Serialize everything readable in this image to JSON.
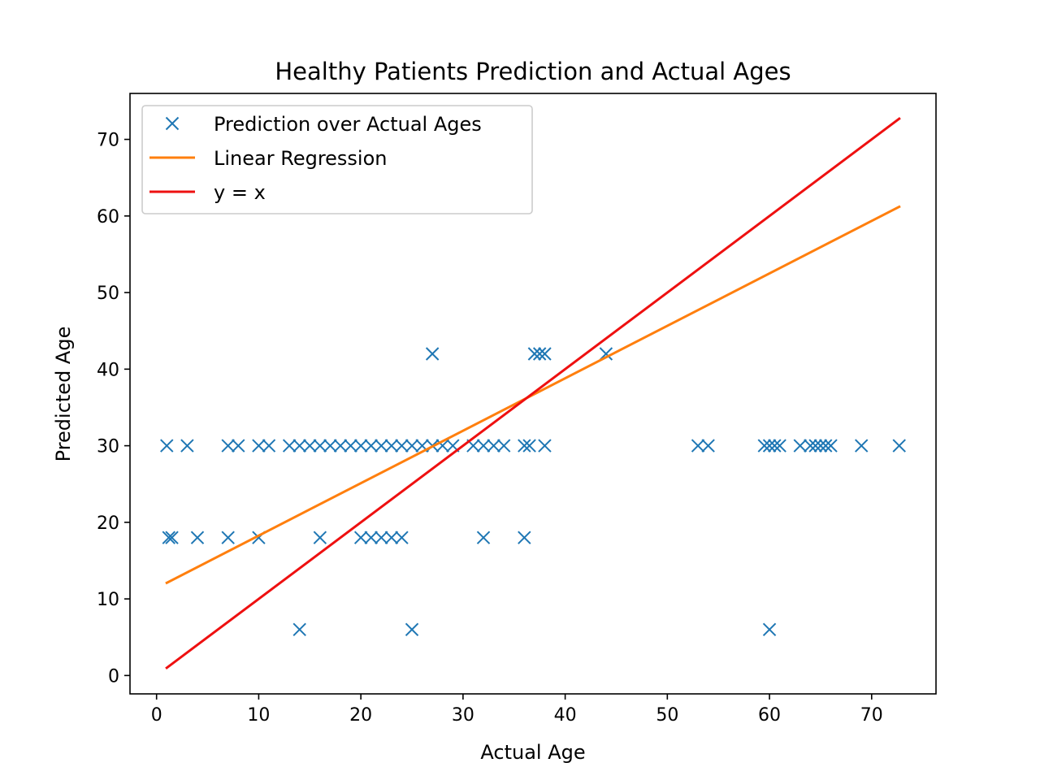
{
  "chart_data": {
    "type": "scatter",
    "title": "Healthy Patients Prediction and Actual Ages",
    "xlabel": "Actual Age",
    "ylabel": "Predicted Age",
    "xlim": [
      -2.6,
      76.3
    ],
    "ylim": [
      -2.4,
      76.0
    ],
    "xticks": [
      0,
      10,
      20,
      30,
      40,
      50,
      60,
      70
    ],
    "yticks": [
      0,
      10,
      20,
      30,
      40,
      50,
      60,
      70
    ],
    "grid": false,
    "legend_position": "top-left",
    "colors": {
      "scatter": "#1f77b4",
      "regression": "#ff7f0e",
      "identity": "#ee1010"
    },
    "series": [
      {
        "name": "Prediction over Actual Ages",
        "kind": "scatter",
        "marker": "x",
        "points": [
          [
            1.0,
            30
          ],
          [
            3.0,
            30
          ],
          [
            7.0,
            30
          ],
          [
            8.0,
            30
          ],
          [
            10.0,
            30
          ],
          [
            11.0,
            30
          ],
          [
            13.0,
            30
          ],
          [
            14.0,
            30
          ],
          [
            15.0,
            30
          ],
          [
            16.0,
            30
          ],
          [
            17.0,
            30
          ],
          [
            18.0,
            30
          ],
          [
            19.0,
            30
          ],
          [
            20.0,
            30
          ],
          [
            21.0,
            30
          ],
          [
            22.0,
            30
          ],
          [
            23.0,
            30
          ],
          [
            24.0,
            30
          ],
          [
            25.0,
            30
          ],
          [
            26.0,
            30
          ],
          [
            27.0,
            30
          ],
          [
            28.0,
            30
          ],
          [
            29.0,
            30
          ],
          [
            31.0,
            30
          ],
          [
            32.0,
            30
          ],
          [
            33.0,
            30
          ],
          [
            34.0,
            30
          ],
          [
            36.0,
            30
          ],
          [
            36.5,
            30
          ],
          [
            38.0,
            30
          ],
          [
            53.0,
            30
          ],
          [
            54.0,
            30
          ],
          [
            59.5,
            30
          ],
          [
            60.0,
            30
          ],
          [
            60.5,
            30
          ],
          [
            61.0,
            30
          ],
          [
            63.0,
            30
          ],
          [
            64.0,
            30
          ],
          [
            64.5,
            30
          ],
          [
            65.0,
            30
          ],
          [
            65.5,
            30
          ],
          [
            66.0,
            30
          ],
          [
            69.0,
            30
          ],
          [
            72.7,
            30
          ],
          [
            1.2,
            18
          ],
          [
            1.5,
            18
          ],
          [
            4.0,
            18
          ],
          [
            7.0,
            18
          ],
          [
            10.0,
            18
          ],
          [
            16.0,
            18
          ],
          [
            20.0,
            18
          ],
          [
            21.0,
            18
          ],
          [
            22.0,
            18
          ],
          [
            23.0,
            18
          ],
          [
            24.0,
            18
          ],
          [
            32.0,
            18
          ],
          [
            36.0,
            18
          ],
          [
            27.0,
            42
          ],
          [
            37.0,
            42
          ],
          [
            37.5,
            42
          ],
          [
            38.0,
            42
          ],
          [
            44.0,
            42
          ],
          [
            14.0,
            6
          ],
          [
            25.0,
            6
          ],
          [
            60.0,
            6
          ]
        ]
      },
      {
        "name": "Linear Regression",
        "kind": "line",
        "points": [
          [
            1.0,
            12.1
          ],
          [
            72.7,
            61.2
          ]
        ]
      },
      {
        "name": "y = x",
        "kind": "line",
        "points": [
          [
            1.0,
            1.0
          ],
          [
            72.7,
            72.7
          ]
        ]
      }
    ]
  }
}
